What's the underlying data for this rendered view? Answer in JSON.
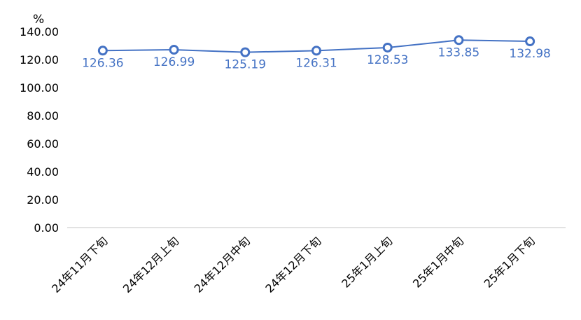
{
  "chart_data": {
    "type": "line",
    "title": "",
    "xlabel": "",
    "ylabel": "%",
    "ylim": [
      0,
      140
    ],
    "ytick_step": 20,
    "ytick_labels": [
      "0.00",
      "20.00",
      "40.00",
      "60.00",
      "80.00",
      "100.00",
      "120.00",
      "140.00"
    ],
    "categories": [
      "24年11月下旬",
      "24年12月上旬",
      "24年12月中旬",
      "24年12月下旬",
      "25年1月上旬",
      "25年1月中旬",
      "25年1月下旬"
    ],
    "series": [
      {
        "values": [
          126.36,
          126.99,
          125.19,
          126.31,
          128.53,
          133.85,
          132.98
        ],
        "data_labels": [
          "126.36",
          "126.99",
          "125.19",
          "126.31",
          "128.53",
          "133.85",
          "132.98"
        ],
        "color": "#4472c4",
        "marker": "hollow-circle"
      }
    ],
    "grid": false,
    "legend": "none",
    "axis_color": "#d9d9d9"
  }
}
